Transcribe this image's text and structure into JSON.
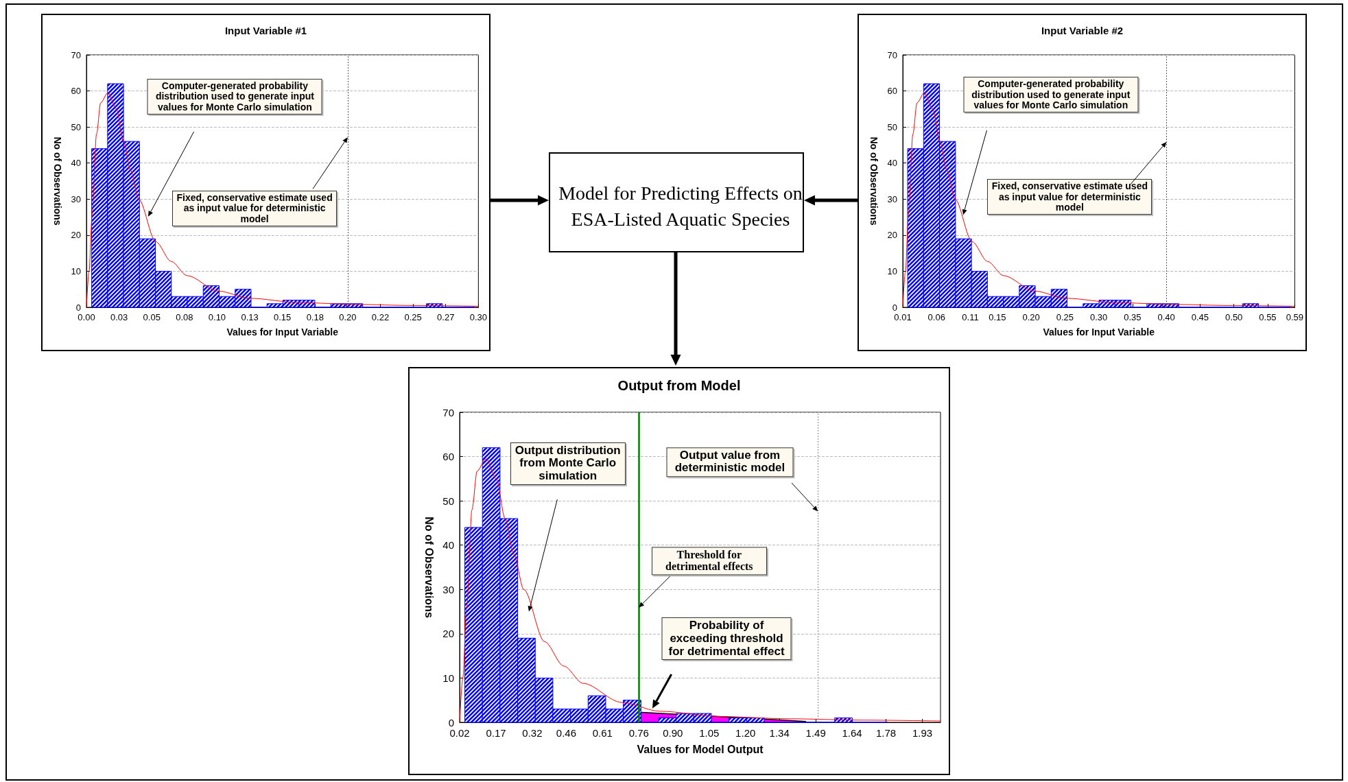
{
  "chart_data": [
    {
      "type": "histogram",
      "title": "Input Variable #1",
      "xlabel": "Values for Input Variable",
      "ylabel": "No of Observations",
      "xlim": [
        0,
        0.3
      ],
      "xticks": [
        {
          "value": 0,
          "label": "0.00"
        },
        {
          "value": 0.025,
          "label": "0.03"
        },
        {
          "value": 0.05,
          "label": "0.05"
        },
        {
          "value": 0.075,
          "label": "0.08"
        },
        {
          "value": 0.1,
          "label": "0.10"
        },
        {
          "value": 0.125,
          "label": "0.13"
        },
        {
          "value": 0.15,
          "label": "0.15"
        },
        {
          "value": 0.175,
          "label": "0.18"
        },
        {
          "value": 0.2,
          "label": "0.20"
        },
        {
          "value": 0.225,
          "label": "0.22"
        },
        {
          "value": 0.25,
          "label": "0.25"
        },
        {
          "value": 0.275,
          "label": "0.27"
        },
        {
          "value": 0.3,
          "label": "0.30"
        }
      ],
      "ylim": [
        0,
        70
      ],
      "yticks": [
        0,
        10,
        20,
        30,
        40,
        50,
        60,
        70
      ],
      "grid": "y",
      "marker": "none",
      "series": [
        {
          "type": "histogram",
          "color": "#0000ff",
          "bins": [
            0.004,
            0.0162,
            0.0284,
            0.0406,
            0.0528,
            0.065,
            0.0772,
            0.0894,
            0.1016,
            0.1138,
            0.126,
            0.1382,
            0.1504,
            0.1626,
            0.1748,
            0.187,
            0.1992,
            0.2114,
            0.2236,
            0.2358,
            0.248,
            0.2602,
            0.2724,
            0.2846,
            0.2968
          ],
          "values": [
            44,
            62,
            46,
            19,
            10,
            3,
            3,
            6,
            3,
            5,
            0,
            1,
            2,
            2,
            0,
            1,
            1,
            0,
            0,
            0,
            0,
            1,
            0,
            0
          ]
        },
        {
          "type": "line",
          "color": "#ff0000",
          "x": [
            0,
            0.002,
            0.0044,
            0.0077,
            0.0109,
            0.0164,
            0.0229,
            0.0284,
            0.0338,
            0.04,
            0.053,
            0.065,
            0.077,
            0.101,
            0.125,
            0.163,
            0.206,
            0.25,
            0.3
          ],
          "values": [
            0,
            10,
            26,
            48,
            56.7,
            59.5,
            55,
            46,
            38,
            30,
            18.2,
            12.7,
            8.8,
            4.5,
            2.5,
            1.3,
            0.8,
            0.5,
            0.3
          ]
        }
      ],
      "ref_lines": [
        {
          "axis": "x",
          "value": 0.2,
          "color": "#555555",
          "line_style": "dotted"
        }
      ],
      "annotations": [
        "Computer-generated probability distribution used to generate input values for Monte Carlo simulation",
        {
          "text": "Fixed, conservative estimate used as input value for deterministic model",
          "x": 0.2,
          "y": 47.1
        }
      ]
    },
    {
      "type": "other",
      "title": "Model for Predicting Effects on ESA-Listed Aquatic Species"
    },
    {
      "type": "histogram",
      "title": "Input Variable #2",
      "xlabel": "Values for Input Variable",
      "ylabel": "No of Observations",
      "xlim": [
        0.01,
        0.59
      ],
      "xticks": [
        {
          "value": 0.01,
          "label": "0.01"
        },
        {
          "value": 0.06,
          "label": "0.06"
        },
        {
          "value": 0.11,
          "label": "0.11"
        },
        {
          "value": 0.15,
          "label": "0.15"
        },
        {
          "value": 0.2,
          "label": "0.20"
        },
        {
          "value": 0.25,
          "label": "0.25"
        },
        {
          "value": 0.3,
          "label": "0.30"
        },
        {
          "value": 0.35,
          "label": "0.35"
        },
        {
          "value": 0.4,
          "label": "0.40"
        },
        {
          "value": 0.45,
          "label": "0.45"
        },
        {
          "value": 0.5,
          "label": "0.50"
        },
        {
          "value": 0.55,
          "label": "0.55"
        },
        {
          "value": 0.59,
          "label": "0.59"
        }
      ],
      "ylim": [
        0,
        70
      ],
      "yticks": [
        0,
        10,
        20,
        30,
        40,
        50,
        60,
        70
      ],
      "grid": "y",
      "marker": "none",
      "series": [
        {
          "type": "histogram",
          "color": "#0000ff",
          "bins": [
            0.0172,
            0.0408,
            0.0644,
            0.088,
            0.1116,
            0.1352,
            0.1588,
            0.1824,
            0.206,
            0.2296,
            0.2532,
            0.2768,
            0.3004,
            0.324,
            0.3476,
            0.3712,
            0.3948,
            0.4184,
            0.442,
            0.4656,
            0.4892,
            0.5128,
            0.5364,
            0.56,
            0.5836
          ],
          "values": [
            44,
            62,
            46,
            19,
            10,
            3,
            3,
            6,
            3,
            5,
            0,
            1,
            2,
            2,
            0,
            1,
            1,
            0,
            0,
            0,
            0,
            1,
            0,
            0
          ]
        },
        {
          "type": "line",
          "color": "#ff0000",
          "x": [
            0.01,
            0.0139,
            0.0185,
            0.0249,
            0.0311,
            0.0417,
            0.0543,
            0.0649,
            0.0753,
            0.0873,
            0.1125,
            0.1357,
            0.1589,
            0.2053,
            0.2517,
            0.3251,
            0.4083,
            0.4933,
            0.59
          ],
          "values": [
            0,
            10,
            26,
            48,
            56.7,
            59.5,
            55,
            46,
            38,
            30,
            18.2,
            12.7,
            8.8,
            4.5,
            2.5,
            1.3,
            0.8,
            0.5,
            0.3
          ]
        }
      ],
      "ref_lines": [
        {
          "axis": "x",
          "value": 0.4,
          "color": "#555555",
          "line_style": "dotted"
        }
      ],
      "annotations": [
        "Computer-generated probability distribution used to generate input values for Monte Carlo simulation",
        {
          "text": "Fixed, conservative estimate used as input value for deterministic model",
          "x": 0.4,
          "y": 45.9
        }
      ]
    },
    {
      "type": "histogram",
      "title": "Output from Model",
      "xlabel": "Values for Model Output",
      "ylabel": "No of Observations",
      "xlim": [
        0.02,
        2.005
      ],
      "xticks": [
        {
          "value": 0.02,
          "label": "0.02"
        },
        {
          "value": 0.17,
          "label": "0.17"
        },
        {
          "value": 0.32,
          "label": "0.32"
        },
        {
          "value": 0.46,
          "label": "0.46"
        },
        {
          "value": 0.61,
          "label": "0.61"
        },
        {
          "value": 0.76,
          "label": "0.76"
        },
        {
          "value": 0.9,
          "label": "0.90"
        },
        {
          "value": 1.05,
          "label": "1.05"
        },
        {
          "value": 1.2,
          "label": "1.20"
        },
        {
          "value": 1.34,
          "label": "1.34"
        },
        {
          "value": 1.49,
          "label": "1.49"
        },
        {
          "value": 1.64,
          "label": "1.64"
        },
        {
          "value": 1.78,
          "label": "1.78"
        },
        {
          "value": 1.93,
          "label": "1.93"
        }
      ],
      "ylim": [
        0,
        70
      ],
      "yticks": [
        0,
        10,
        20,
        30,
        40,
        50,
        60,
        70
      ],
      "grid": "y",
      "marker": "none",
      "series": [
        {
          "type": "histogram",
          "color": "#0000ff",
          "bins": [
            0.0414,
            0.1141,
            0.1868,
            0.2595,
            0.3322,
            0.4049,
            0.4776,
            0.5503,
            0.623,
            0.6957,
            0.7684,
            0.8411,
            0.9138,
            0.9865,
            1.0592,
            1.1319,
            1.2046,
            1.2773,
            1.35,
            1.4227,
            1.4954,
            1.5681,
            1.6408,
            1.7135,
            1.7862
          ],
          "values": [
            44,
            62,
            46,
            19,
            10,
            3,
            3,
            6,
            3,
            5,
            0,
            1,
            2,
            2,
            0,
            1,
            1,
            0,
            0,
            0,
            0,
            1,
            0,
            0
          ]
        },
        {
          "type": "line",
          "color": "#ff0000",
          "x": [
            0.02,
            0.0332,
            0.0491,
            0.071,
            0.0921,
            0.1285,
            0.1715,
            0.2079,
            0.2437,
            0.2847,
            0.3707,
            0.4501,
            0.5295,
            0.6883,
            0.8471,
            1.0986,
            1.3831,
            1.6743,
            2.005
          ],
          "values": [
            0,
            10,
            26,
            48,
            56.7,
            59.5,
            55,
            46,
            38,
            30,
            18.2,
            12.7,
            8.8,
            4.5,
            2.5,
            1.3,
            0.8,
            0.5,
            0.3
          ]
        },
        {
          "type": "area",
          "color": "#ff00ff",
          "x": [
            0.76,
            1.45
          ],
          "values": [
            2.3,
            0.2
          ]
        }
      ],
      "ref_lines": [
        {
          "axis": "x",
          "value": 0.76,
          "color": "#008000",
          "line_style": "solid"
        },
        {
          "axis": "x",
          "value": 1.5,
          "color": "#888888",
          "line_style": "dotted"
        }
      ],
      "annotations": [
        "Output distribution from Monte Carlo simulation",
        {
          "text": "Output value from deterministic model",
          "x": 1.5,
          "y": 47.7
        },
        {
          "text": "Threshold for detrimental effects",
          "x": 0.76,
          "y": 25.9
        },
        "Probability of exceeding threshold for detrimental effect"
      ]
    }
  ]
}
